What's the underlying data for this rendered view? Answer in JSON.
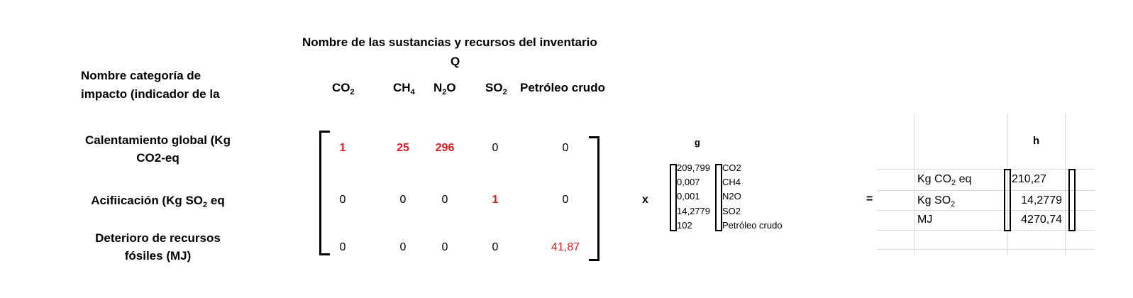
{
  "header": {
    "title": "Nombre de las sustancias y recursos del inventario",
    "q_label": "Q",
    "category_header_line1": "Nombre categoría de",
    "category_header_line2": "impacto (indicador de la"
  },
  "substances": [
    {
      "base": "CO",
      "sub": "2"
    },
    {
      "base": "CH",
      "sub": "4"
    },
    {
      "base": "N",
      "sub": "2",
      "tail": "O"
    },
    {
      "base": "SO",
      "sub": "2"
    },
    {
      "base": "Petróleo crudo"
    }
  ],
  "categories": [
    {
      "line1": "Calentamiento global (Kg",
      "line2": "CO2-eq"
    },
    {
      "line1": "Acifiicación (Kg SO",
      "sub": "2",
      "tail": " eq"
    },
    {
      "line1": "Deterioro de recursos",
      "line2": "fósiles (MJ)"
    }
  ],
  "matrix_q": [
    [
      "1",
      "25",
      "296",
      "0",
      "0"
    ],
    [
      "0",
      "0",
      "0",
      "1",
      "0"
    ],
    [
      "0",
      "0",
      "0",
      "0",
      "41,87"
    ]
  ],
  "operators": {
    "times": "x",
    "equals": "="
  },
  "vector_g": {
    "label": "g",
    "values": [
      "209,799",
      "0,007",
      "0,001",
      "14,2779",
      "102"
    ],
    "names": [
      "CO2",
      "CH4",
      "N2O",
      "SO2",
      "Petróleo crudo"
    ]
  },
  "vector_h": {
    "label": "h",
    "units": [
      {
        "base": "Kg CO",
        "sub": "2",
        "tail": " eq"
      },
      {
        "base": "Kg SO",
        "sub": "2",
        "tail": ""
      },
      {
        "base": "MJ",
        "sub": "",
        "tail": ""
      }
    ],
    "values": [
      "210,27",
      "14,2779",
      "4270,74"
    ]
  },
  "colors": {
    "highlight": "#e8191e",
    "grid": "#d9d9d9"
  }
}
